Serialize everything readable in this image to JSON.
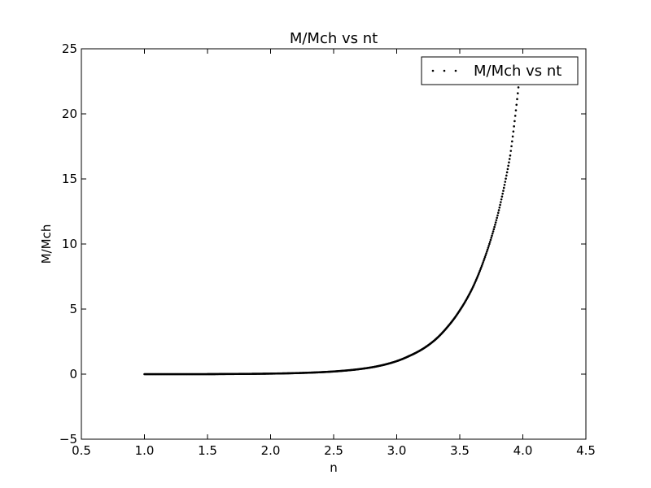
{
  "chart_data": {
    "type": "scatter",
    "title": "M/Mch vs nt",
    "xlabel": "n",
    "ylabel": "M/Mch",
    "xlim": [
      0.5,
      4.5
    ],
    "ylim": [
      -5,
      25
    ],
    "xticks": [
      0.5,
      1.0,
      1.5,
      2.0,
      2.5,
      3.0,
      3.5,
      4.0,
      4.5
    ],
    "xtick_labels": [
      "0.5",
      "1.0",
      "1.5",
      "2.0",
      "2.5",
      "3.0",
      "3.5",
      "4.0",
      "4.5"
    ],
    "yticks": [
      -5,
      0,
      5,
      10,
      15,
      20,
      25
    ],
    "ytick_labels": [
      "−5",
      "0",
      "5",
      "10",
      "15",
      "20",
      "25"
    ],
    "grid": false,
    "legend": {
      "position": "top-right",
      "entries": [
        "M/Mch vs nt"
      ]
    },
    "series": [
      {
        "name": "M/Mch vs nt",
        "color": "#000000",
        "marker": "dot",
        "x": [
          1.0,
          1.2,
          1.4,
          1.6,
          1.8,
          2.0,
          2.2,
          2.4,
          2.6,
          2.8,
          3.0,
          3.1,
          3.2,
          3.3,
          3.4,
          3.5,
          3.6,
          3.7,
          3.8,
          3.9,
          3.97
        ],
        "y": [
          0.0,
          0.0,
          0.0,
          0.01,
          0.02,
          0.04,
          0.08,
          0.15,
          0.28,
          0.52,
          1.0,
          1.4,
          1.9,
          2.6,
          3.6,
          4.9,
          6.6,
          9.0,
          12.2,
          16.8,
          22.5
        ]
      }
    ]
  }
}
